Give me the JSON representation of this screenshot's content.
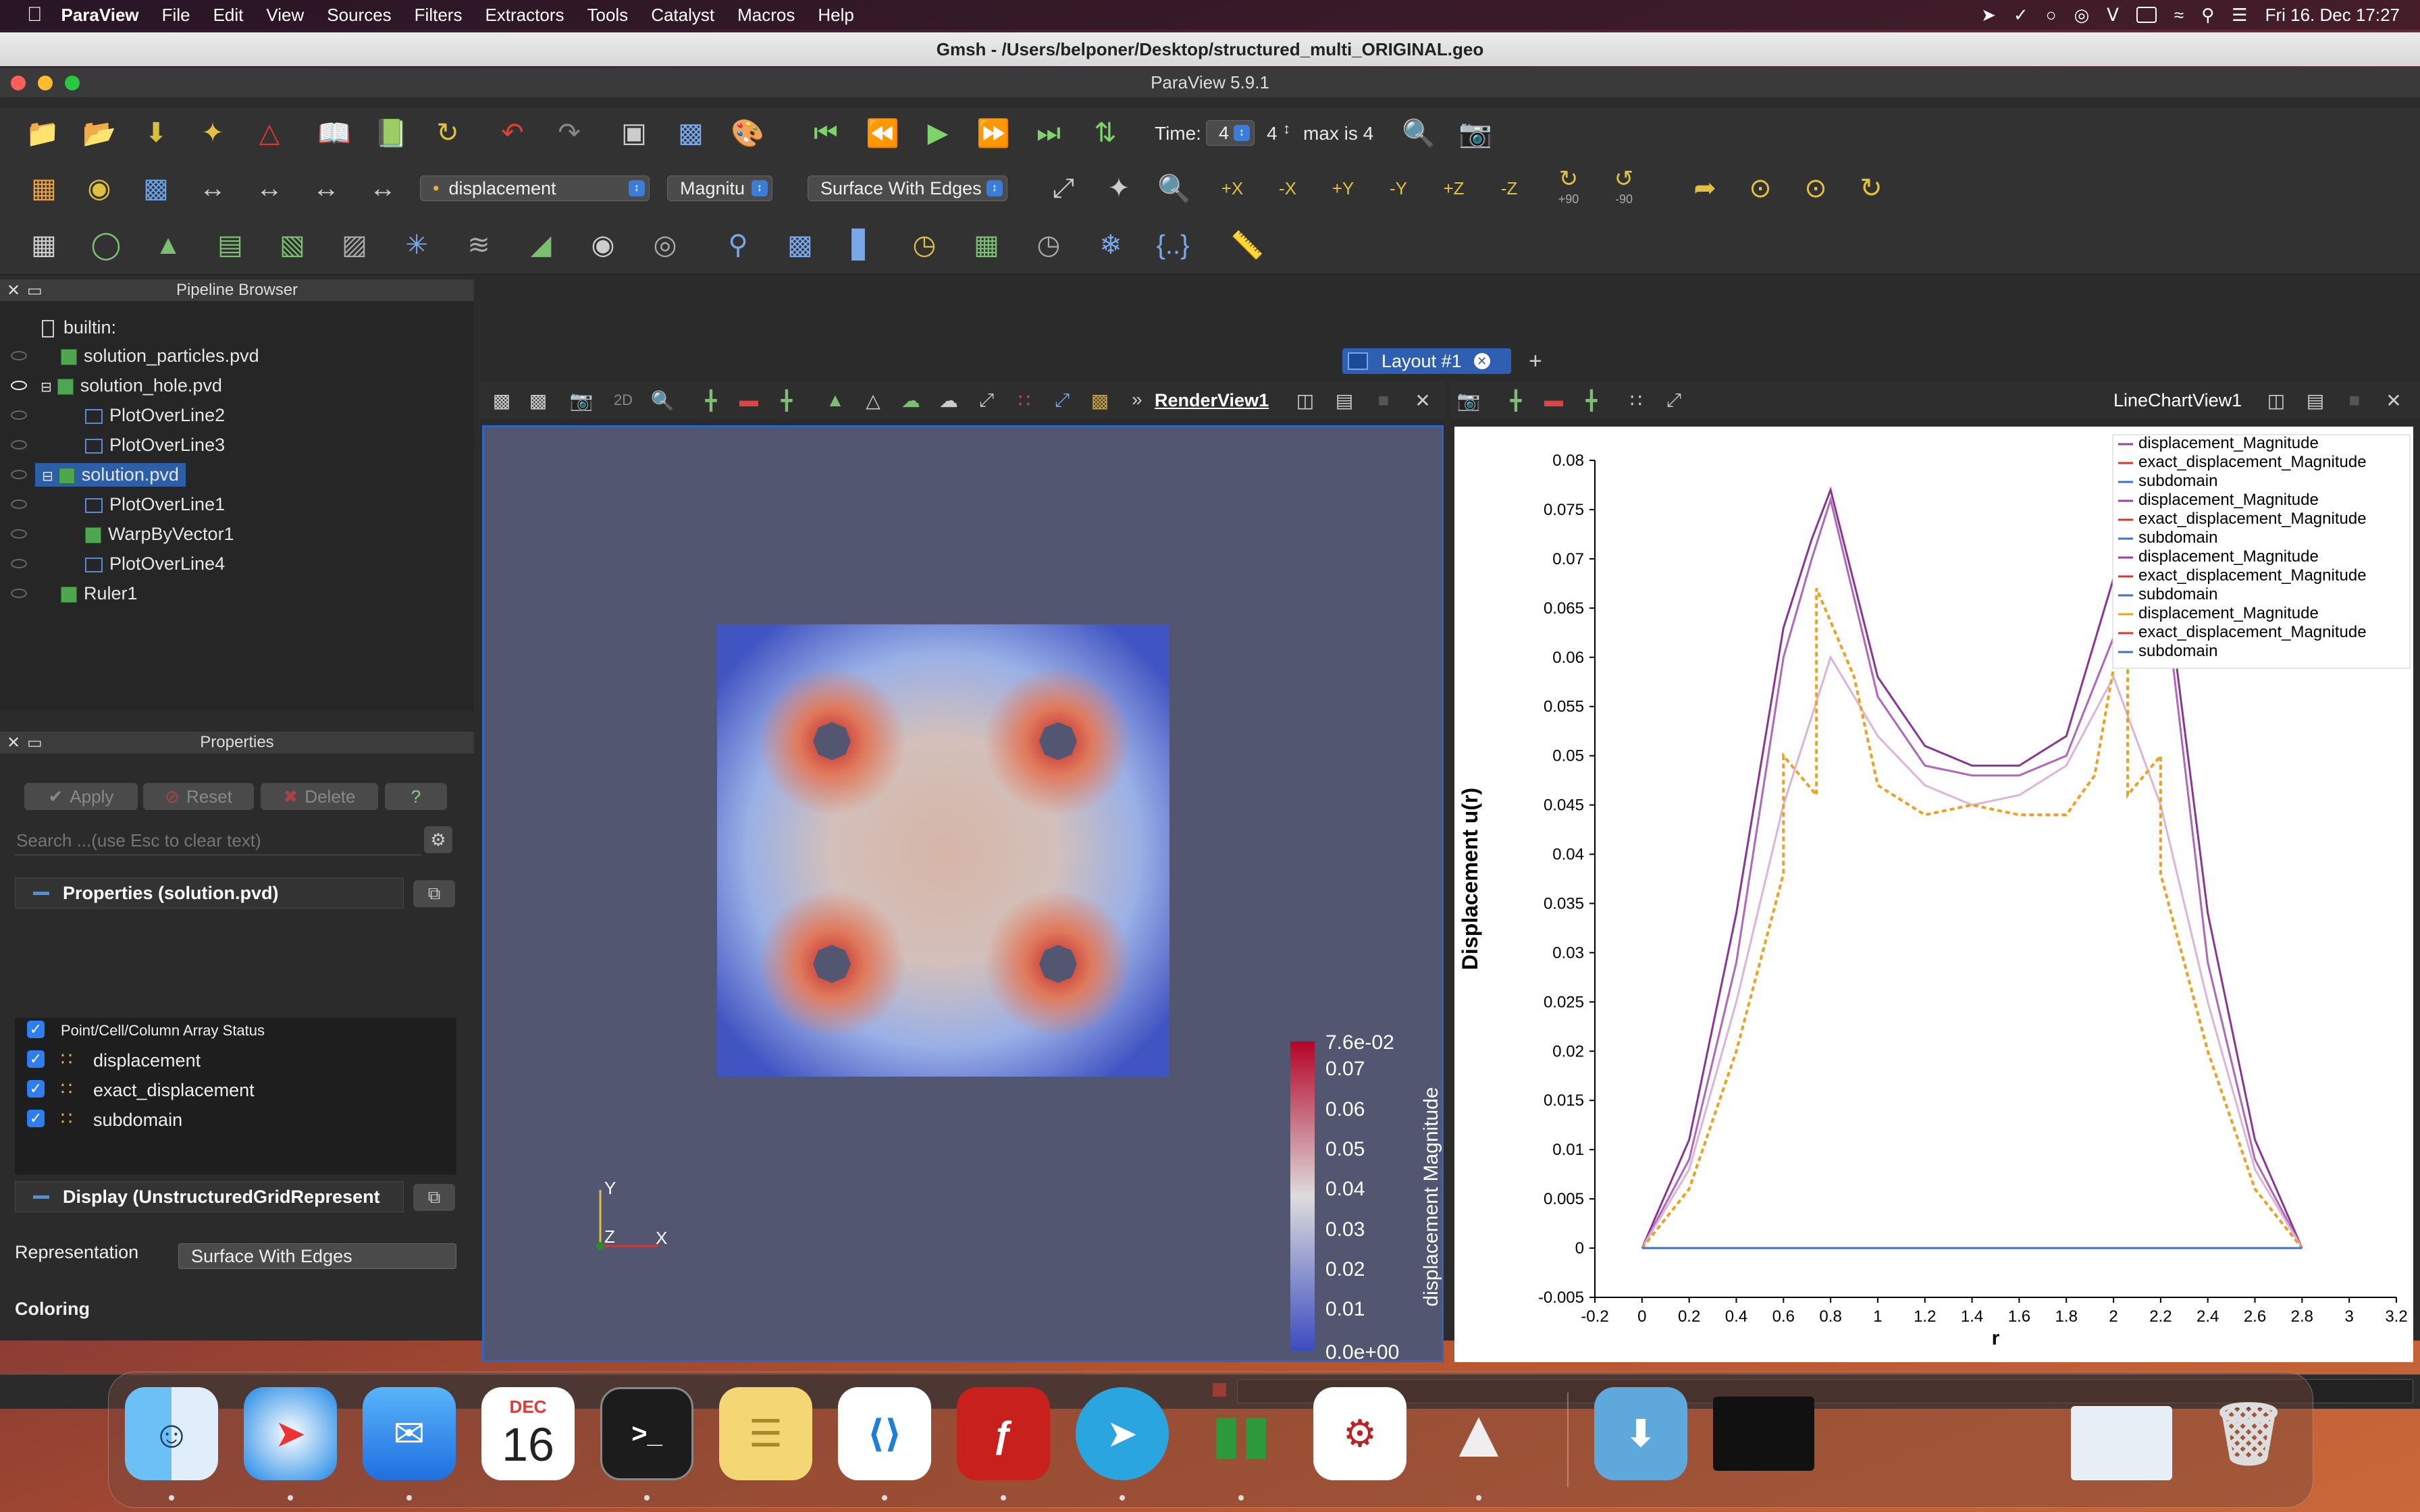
{
  "menubar": {
    "app": "ParaView",
    "items": [
      "File",
      "Edit",
      "View",
      "Sources",
      "Filters",
      "Extractors",
      "Tools",
      "Catalyst",
      "Macros",
      "Help"
    ],
    "clock": "Fri 16. Dec  17:27"
  },
  "gmsh_title": "Gmsh - /Users/belponer/Desktop/structured_multi_ORIGINAL.geo",
  "window_title": "ParaView 5.9.1",
  "toolbar": {
    "time_label": "Time:",
    "time_value": "4",
    "time_step": "4",
    "time_max": "max is 4",
    "array_combo": "displacement",
    "component_combo": "Magnitu",
    "representation_combo": "Surface With Edges",
    "rot_plus90": "+90",
    "rot_minus90": "-90",
    "axis_buttons": [
      "+X",
      "-X",
      "+Y",
      "-Y",
      "+Z",
      "-Z"
    ]
  },
  "pipeline": {
    "header": "Pipeline Browser",
    "items": [
      {
        "label": "builtin:",
        "kind": "server"
      },
      {
        "label": "solution_particles.pvd",
        "kind": "source"
      },
      {
        "label": "solution_hole.pvd",
        "kind": "source"
      },
      {
        "label": "PlotOverLine2",
        "kind": "plot"
      },
      {
        "label": "PlotOverLine3",
        "kind": "plot"
      },
      {
        "label": "solution.pvd",
        "kind": "source",
        "selected": true
      },
      {
        "label": "PlotOverLine1",
        "kind": "plot"
      },
      {
        "label": "WarpByVector1",
        "kind": "source"
      },
      {
        "label": "PlotOverLine4",
        "kind": "plot"
      },
      {
        "label": "Ruler1",
        "kind": "source"
      }
    ]
  },
  "properties": {
    "header": "Properties",
    "apply": "Apply",
    "reset": "Reset",
    "delete": "Delete",
    "help": "?",
    "search_placeholder": "Search ...(use Esc to clear text)",
    "section_props": "Properties (solution.pvd)",
    "array_status_header": "Point/Cell/Column Array Status",
    "arrays": [
      "displacement",
      "exact_displacement",
      "subdomain"
    ],
    "section_display": "Display (UnstructuredGridRepresent",
    "representation_label": "Representation",
    "representation_value": "Surface With Edges",
    "coloring_label": "Coloring",
    "coloring_array": "displacement",
    "coloring_component": "Magnitude"
  },
  "layout": {
    "tab": "Layout #1",
    "add": "+",
    "render_view_name": "RenderView1",
    "chart_view_name": "LineChartView1",
    "btn_2d": "2D"
  },
  "colorbar": {
    "title": "displacement Magnitude",
    "labels": [
      "7.6e-02",
      "0.07",
      "0.06",
      "0.05",
      "0.04",
      "0.03",
      "0.02",
      "0.01",
      "0.0e+00"
    ],
    "colors": [
      "#b40426",
      "#f7f7f7",
      "#3b4cc0"
    ]
  },
  "axes_triad": {
    "x": "X",
    "y": "Y",
    "z": "Z"
  },
  "chart_data": {
    "type": "line",
    "xlabel": "r",
    "ylabel": "Displacement u(r)",
    "xlim": [
      -0.2,
      3.2
    ],
    "ylim": [
      -0.005,
      0.08
    ],
    "xticks": [
      "-0.2",
      "0",
      "0.2",
      "0.4",
      "0.6",
      "0.8",
      "1",
      "1.2",
      "1.4",
      "1.6",
      "1.8",
      "2",
      "2.2",
      "2.4",
      "2.6",
      "2.8",
      "3",
      "3.2"
    ],
    "yticks": [
      "-0.005",
      "0",
      "0.005",
      "0.01",
      "0.015",
      "0.02",
      "0.025",
      "0.03",
      "0.035",
      "0.04",
      "0.045",
      "0.05",
      "0.055",
      "0.06",
      "0.065",
      "0.07",
      "0.075",
      "0.08"
    ],
    "legend_position": "top-right",
    "legend": [
      {
        "name": "displacement_Magnitude",
        "color": "#9b3fa6"
      },
      {
        "name": "exact_displacement_Magnitude",
        "color": "#e0332c"
      },
      {
        "name": "subdomain",
        "color": "#3b6fd0"
      },
      {
        "name": "displacement_Magnitude",
        "color": "#9b3fa6"
      },
      {
        "name": "exact_displacement_Magnitude",
        "color": "#e0332c"
      },
      {
        "name": "subdomain",
        "color": "#3b6fd0"
      },
      {
        "name": "displacement_Magnitude",
        "color": "#9b3fa6"
      },
      {
        "name": "exact_displacement_Magnitude",
        "color": "#e0332c"
      },
      {
        "name": "subdomain",
        "color": "#3b6fd0"
      },
      {
        "name": "displacement_Magnitude",
        "color": "#f0a020"
      },
      {
        "name": "exact_displacement_Magnitude",
        "color": "#e0332c"
      },
      {
        "name": "subdomain",
        "color": "#3b6fd0"
      }
    ],
    "series": [
      {
        "color": "#8a3596",
        "dash": "",
        "x": [
          0,
          0.2,
          0.4,
          0.6,
          0.72,
          0.8,
          1.0,
          1.2,
          1.4,
          1.6,
          1.8,
          2.0,
          2.06,
          2.2,
          2.4,
          2.6,
          2.8
        ],
        "y": [
          0,
          0.011,
          0.034,
          0.063,
          0.072,
          0.077,
          0.058,
          0.051,
          0.049,
          0.049,
          0.052,
          0.068,
          0.077,
          0.072,
          0.034,
          0.011,
          0
        ]
      },
      {
        "color": "#b066bb",
        "dash": "",
        "x": [
          0,
          0.2,
          0.4,
          0.6,
          0.72,
          0.8,
          1.0,
          1.2,
          1.4,
          1.6,
          1.8,
          2.0,
          2.06,
          2.2,
          2.4,
          2.6,
          2.8
        ],
        "y": [
          0,
          0.009,
          0.029,
          0.06,
          0.07,
          0.076,
          0.056,
          0.049,
          0.048,
          0.048,
          0.05,
          0.062,
          0.076,
          0.07,
          0.029,
          0.009,
          0
        ]
      },
      {
        "color": "#dcb4d8",
        "dash": "",
        "x": [
          0,
          0.2,
          0.4,
          0.6,
          0.8,
          1.0,
          1.2,
          1.4,
          1.6,
          1.8,
          2.0,
          2.2,
          2.4,
          2.6,
          2.8
        ],
        "y": [
          0,
          0.008,
          0.025,
          0.045,
          0.06,
          0.052,
          0.047,
          0.045,
          0.046,
          0.049,
          0.058,
          0.045,
          0.025,
          0.008,
          0
        ]
      },
      {
        "color": "#f0a020",
        "dash": "7,5",
        "x": [
          0,
          0.2,
          0.4,
          0.6,
          0.6,
          0.74,
          0.74,
          0.9,
          1.0,
          1.2,
          1.4,
          1.6,
          1.8,
          1.92,
          2.06,
          2.06,
          2.2,
          2.2,
          2.4,
          2.6,
          2.8
        ],
        "y": [
          0,
          0.006,
          0.02,
          0.038,
          0.05,
          0.046,
          0.067,
          0.058,
          0.047,
          0.044,
          0.045,
          0.044,
          0.044,
          0.048,
          0.067,
          0.046,
          0.05,
          0.038,
          0.02,
          0.006,
          0
        ]
      },
      {
        "color": "#3b6fd0",
        "dash": "",
        "x": [
          0,
          2.8
        ],
        "y": [
          0,
          0
        ]
      }
    ]
  },
  "dock": {
    "calendar_month": "DEC",
    "calendar_day": "16",
    "apps": [
      "finder",
      "safari",
      "mail",
      "calendar",
      "terminal",
      "stickies",
      "vscode",
      "acrobat",
      "telegram",
      "paraview",
      "rstudio",
      "gmsh",
      "downloads",
      "window-thumb-1",
      "window-thumb-2",
      "trash"
    ]
  }
}
